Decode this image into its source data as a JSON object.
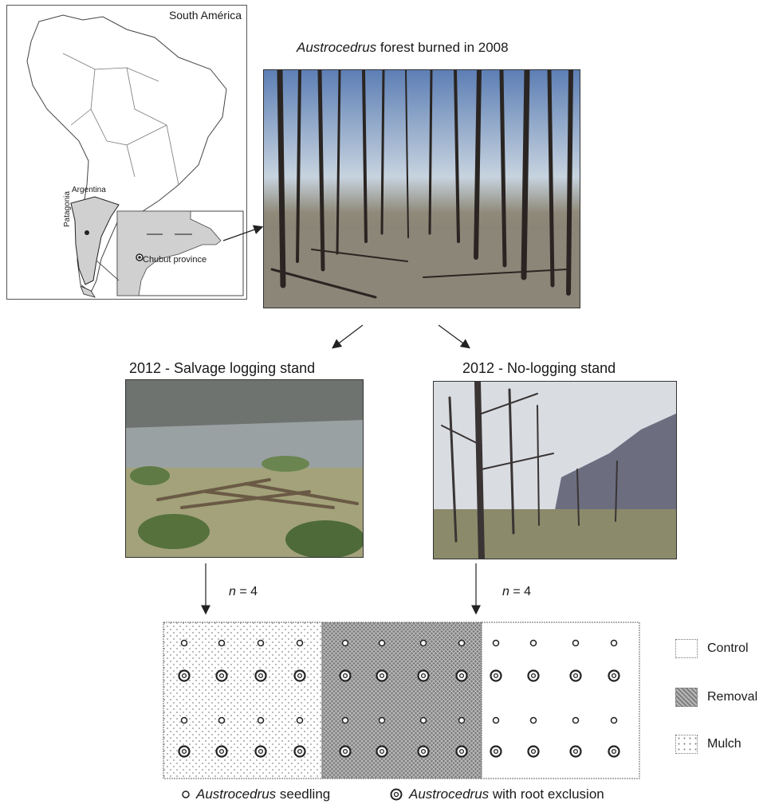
{
  "map": {
    "continent_label": "South América",
    "country_label": "Argentina",
    "region_label": "Patagonia",
    "province_label": "Chubut province"
  },
  "photos": {
    "burned": {
      "title_species": "Austrocedrus",
      "title_rest": " forest burned in 2008"
    },
    "salvage": {
      "title": "2012 - Salvage logging stand"
    },
    "nologging": {
      "title": "2012 - No-logging stand"
    }
  },
  "replicates": {
    "left": {
      "n_symbol": "n",
      "n_rest": " = 4"
    },
    "right": {
      "n_symbol": "n",
      "n_rest": " = 4"
    }
  },
  "legend": {
    "control": "Control",
    "removal": "Removal",
    "mulch": "Mulch"
  },
  "symbol_legend": {
    "seedling_species": "Austrocedrus",
    "seedling_rest": " seedling",
    "root_species": "Austrocedrus",
    "root_rest": " with root exclusion"
  },
  "colors": {
    "removal_fill": "#8a8a8a",
    "land_fill": "#d0d0d0",
    "outline": "#222222"
  }
}
